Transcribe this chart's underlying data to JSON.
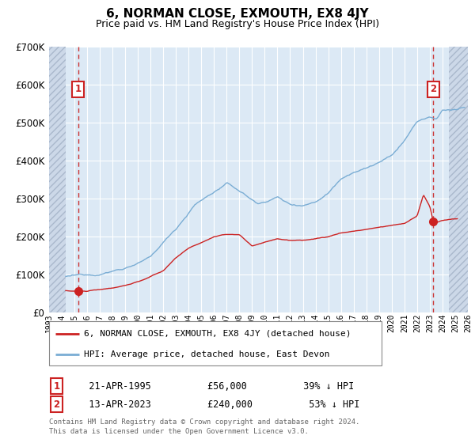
{
  "title": "6, NORMAN CLOSE, EXMOUTH, EX8 4JY",
  "subtitle": "Price paid vs. HM Land Registry's House Price Index (HPI)",
  "x_start_year": 1993,
  "x_end_year": 2026,
  "ylim": [
    0,
    700000
  ],
  "yticks": [
    0,
    100000,
    200000,
    300000,
    400000,
    500000,
    600000,
    700000
  ],
  "ytick_labels": [
    "£0",
    "£100K",
    "£200K",
    "£300K",
    "£400K",
    "£500K",
    "£600K",
    "£700K"
  ],
  "sale1_price": 56000,
  "sale1_year": 1995.3,
  "sale2_price": 240000,
  "sale2_year": 2023.28,
  "hpi_color": "#7aadd4",
  "price_color": "#cc2222",
  "bg_color": "#dce9f5",
  "hatch_bg_color": "#ccd8e8",
  "grid_color": "#ffffff",
  "vline_color": "#cc3333",
  "legend_label1": "6, NORMAN CLOSE, EXMOUTH, EX8 4JY (detached house)",
  "legend_label2": "HPI: Average price, detached house, East Devon",
  "footer1": "Contains HM Land Registry data © Crown copyright and database right 2024.",
  "footer2": "This data is licensed under the Open Government Licence v3.0.",
  "sale1_date_str": "21-APR-1995",
  "sale1_price_str": "£56,000",
  "sale1_pct_str": "39% ↓ HPI",
  "sale2_date_str": "13-APR-2023",
  "sale2_price_str": "£240,000",
  "sale2_pct_str": "53% ↓ HPI"
}
